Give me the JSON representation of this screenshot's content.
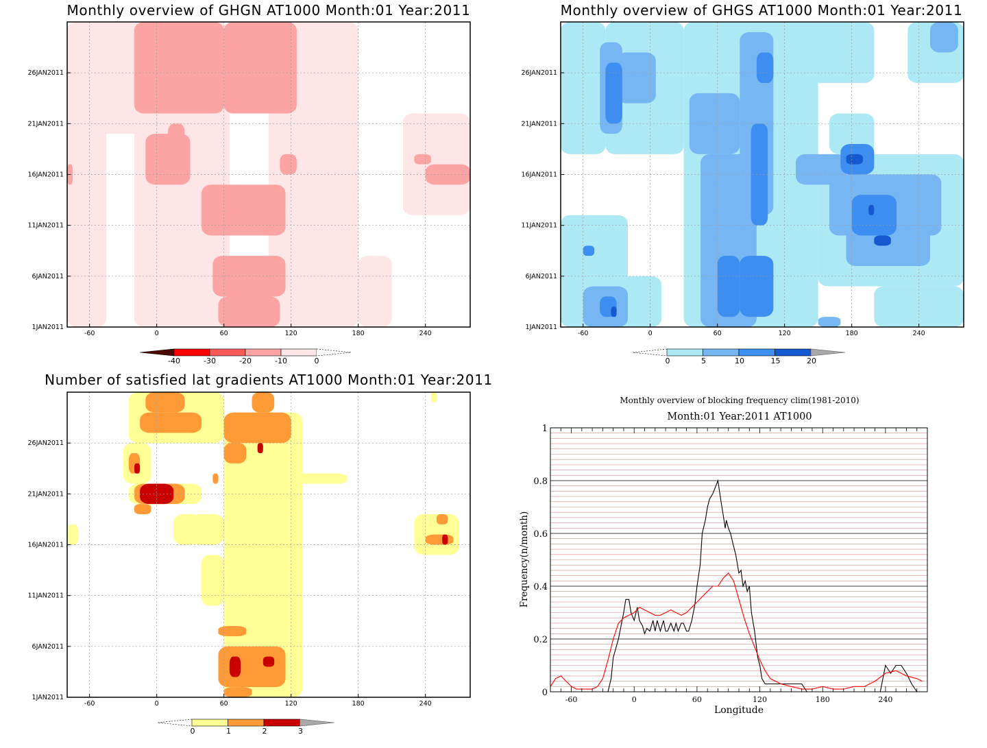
{
  "chart_data": [
    {
      "type": "heatmap",
      "title": "Monthly overview of GHGN AT1000 Month:01 Year:2011",
      "x_ticks": [
        "-60",
        "0",
        "60",
        "120",
        "180",
        "240"
      ],
      "x_tick_values": [
        -60,
        0,
        60,
        120,
        180,
        240
      ],
      "xlim": [
        -80,
        280
      ],
      "y_ticks": [
        "1JAN2011",
        "6JAN2011",
        "11JAN2011",
        "16JAN2011",
        "21JAN2011",
        "26JAN2011"
      ],
      "y_tick_values": [
        1,
        6,
        11,
        16,
        21,
        26
      ],
      "ylim": [
        1,
        31
      ],
      "colorbar": {
        "labels": [
          "-40",
          "-30",
          "-20",
          "-10",
          "0"
        ],
        "colors": [
          "#4a0a00",
          "#ff0000",
          "#f85a5a",
          "#fca3a3",
          "#fee6e6"
        ],
        "over_color": "#ffffff"
      },
      "contours": [
        {
          "level": "0..-10",
          "color": "#fee6e6",
          "cells": [
            [
              -80,
              1,
              -45,
              31
            ],
            [
              -20,
              1,
              65,
              31
            ],
            [
              100,
              1,
              180,
              31
            ],
            [
              180,
              1,
              210,
              8
            ],
            [
              220,
              12,
              280,
              22
            ],
            [
              -80,
              20,
              -10,
              31
            ]
          ]
        },
        {
          "level": "-10..-20",
          "color": "#fca3a3",
          "cells": [
            [
              -20,
              22,
              60,
              31
            ],
            [
              60,
              22,
              125,
              31
            ],
            [
              -10,
              15,
              30,
              20
            ],
            [
              40,
              10,
              115,
              15
            ],
            [
              50,
              4,
              115,
              8
            ],
            [
              55,
              1,
              110,
              4
            ],
            [
              110,
              16,
              125,
              18
            ],
            [
              -80,
              15,
              -75,
              17
            ],
            [
              240,
              15,
              280,
              17
            ],
            [
              230,
              17,
              245,
              18
            ],
            [
              10,
              18,
              25,
              21
            ]
          ]
        }
      ]
    },
    {
      "type": "heatmap",
      "title": "Monthly overview of GHGS AT1000 Month:01 Year:2011",
      "x_ticks": [
        "-60",
        "0",
        "60",
        "120",
        "180",
        "240"
      ],
      "x_tick_values": [
        -60,
        0,
        60,
        120,
        180,
        240
      ],
      "xlim": [
        -80,
        280
      ],
      "y_ticks": [
        "1JAN2011",
        "6JAN2011",
        "11JAN2011",
        "16JAN2011",
        "21JAN2011",
        "26JAN2011"
      ],
      "y_tick_values": [
        1,
        6,
        11,
        16,
        21,
        26
      ],
      "ylim": [
        1,
        31
      ],
      "colorbar": {
        "labels": [
          "0",
          "5",
          "10",
          "15",
          "20"
        ],
        "colors": [
          "#ade9f5",
          "#76b7f3",
          "#3d8ef0",
          "#1559d0"
        ],
        "over_color": "#a9a9a9"
      },
      "contours": [
        {
          "level": "0..5",
          "color": "#ade9f5",
          "cells": [
            [
              -80,
              1,
              -20,
              12
            ],
            [
              -80,
              18,
              -40,
              31
            ],
            [
              -40,
              18,
              30,
              31
            ],
            [
              30,
              1,
              150,
              31
            ],
            [
              150,
              5,
              280,
              18
            ],
            [
              160,
              18,
              200,
              22
            ],
            [
              230,
              25,
              280,
              31
            ],
            [
              200,
              1,
              280,
              5
            ],
            [
              -80,
              1,
              10,
              6
            ],
            [
              140,
              25,
              200,
              31
            ]
          ]
        },
        {
          "level": "5..10",
          "color": "#76b7f3",
          "cells": [
            [
              -45,
              20,
              -25,
              29
            ],
            [
              -30,
              23,
              5,
              28
            ],
            [
              35,
              18,
              80,
              24
            ],
            [
              45,
              1,
              95,
              18
            ],
            [
              80,
              12,
              110,
              30
            ],
            [
              130,
              15,
              175,
              18
            ],
            [
              160,
              10,
              260,
              16
            ],
            [
              175,
              7,
              250,
              12
            ],
            [
              -60,
              1,
              -20,
              5
            ],
            [
              250,
              28,
              275,
              31
            ],
            [
              150,
              1,
              170,
              2
            ]
          ]
        },
        {
          "level": "10..15",
          "color": "#3d8ef0",
          "cells": [
            [
              -40,
              21,
              -25,
              27
            ],
            [
              60,
              2,
              80,
              8
            ],
            [
              80,
              2,
              110,
              8
            ],
            [
              90,
              11,
              105,
              21
            ],
            [
              95,
              25,
              110,
              28
            ],
            [
              170,
              16,
              200,
              19
            ],
            [
              180,
              10,
              220,
              14
            ],
            [
              -45,
              2,
              -30,
              4
            ],
            [
              -60,
              8,
              -50,
              9
            ]
          ]
        },
        {
          "level": "15..20",
          "color": "#1559d0",
          "cells": [
            [
              175,
              17,
              190,
              18
            ],
            [
              195,
              12,
              200,
              13
            ],
            [
              200,
              9,
              215,
              10
            ],
            [
              -35,
              2,
              -30,
              3
            ]
          ]
        }
      ]
    },
    {
      "type": "heatmap",
      "title": "Number of satisfied lat gradients AT1000 Month:01 Year:2011",
      "x_ticks": [
        "-60",
        "0",
        "60",
        "120",
        "180",
        "240"
      ],
      "x_tick_values": [
        -60,
        0,
        60,
        120,
        180,
        240
      ],
      "xlim": [
        -80,
        280
      ],
      "y_ticks": [
        "1JAN2011",
        "6JAN2011",
        "11JAN2011",
        "16JAN2011",
        "21JAN2011",
        "26JAN2011"
      ],
      "y_tick_values": [
        1,
        6,
        11,
        16,
        21,
        26
      ],
      "ylim": [
        1,
        31
      ],
      "colorbar": {
        "labels": [
          "0",
          "1",
          "2",
          "3"
        ],
        "colors": [
          "#ffff96",
          "#ff9b37",
          "#c80000"
        ],
        "over_color": "#a9a9a9"
      },
      "contours": [
        {
          "level": "0..1",
          "color": "#ffff96",
          "cells": [
            [
              -25,
              26,
              60,
              31
            ],
            [
              -30,
              22,
              -5,
              26
            ],
            [
              -25,
              20,
              40,
              22
            ],
            [
              15,
              16,
              40,
              19
            ],
            [
              60,
              1,
              130,
              29
            ],
            [
              40,
              10,
              60,
              15
            ],
            [
              30,
              16,
              60,
              19
            ],
            [
              60,
              22,
              170,
              23
            ],
            [
              230,
              15,
              270,
              19
            ],
            [
              -80,
              16,
              -70,
              18
            ],
            [
              245,
              30,
              250,
              31
            ]
          ]
        },
        {
          "level": "1..2",
          "color": "#ff9b37",
          "cells": [
            [
              -15,
              27,
              40,
              29
            ],
            [
              -10,
              29,
              25,
              31
            ],
            [
              60,
              26,
              120,
              29
            ],
            [
              85,
              29,
              105,
              31
            ],
            [
              -25,
              23,
              -15,
              25
            ],
            [
              -20,
              19,
              -5,
              20
            ],
            [
              -20,
              20,
              25,
              22
            ],
            [
              60,
              24,
              80,
              26
            ],
            [
              50,
              22,
              55,
              23
            ],
            [
              55,
              7,
              80,
              8
            ],
            [
              55,
              2,
              115,
              6
            ],
            [
              60,
              1,
              85,
              2
            ],
            [
              240,
              16,
              265,
              17
            ],
            [
              250,
              18,
              260,
              19
            ]
          ]
        },
        {
          "level": "2..3",
          "color": "#c80000",
          "cells": [
            [
              -20,
              23,
              -15,
              24
            ],
            [
              -15,
              20,
              15,
              22
            ],
            [
              90,
              25,
              95,
              26
            ],
            [
              65,
              3,
              75,
              5
            ],
            [
              95,
              4,
              105,
              5
            ],
            [
              255,
              16,
              260,
              17
            ]
          ]
        }
      ]
    },
    {
      "type": "line",
      "title": "Monthly overview of blocking frequency clim(1981-2010)",
      "subtitle": "Month:01 Year:2011  AT1000",
      "xlabel": "Longitude",
      "ylabel": "Frequency(n/month)",
      "xlim": [
        -80,
        280
      ],
      "ylim": [
        0,
        1
      ],
      "x_ticks": [
        "-60",
        "0",
        "60",
        "120",
        "180",
        "240"
      ],
      "x_tick_values": [
        -60,
        0,
        60,
        120,
        180,
        240
      ],
      "y_ticks": [
        "0",
        "0.2",
        "0.4",
        "0.6",
        "0.8",
        "1"
      ],
      "y_tick_values": [
        0,
        0.2,
        0.4,
        0.6,
        0.8,
        1
      ],
      "grid": true,
      "series": [
        {
          "color": "#000000",
          "x": [
            -80,
            -25,
            -22,
            -20,
            -15,
            -10,
            -8,
            -5,
            -3,
            0,
            3,
            5,
            8,
            10,
            12,
            15,
            18,
            20,
            22,
            25,
            28,
            30,
            32,
            35,
            38,
            40,
            42,
            45,
            47,
            50,
            52,
            55,
            58,
            60,
            63,
            65,
            68,
            70,
            72,
            75,
            78,
            80,
            83,
            85,
            87,
            88,
            90,
            92,
            95,
            97,
            100,
            102,
            104,
            106,
            108,
            110,
            112,
            115,
            118,
            120,
            122,
            125,
            128,
            130,
            140,
            160,
            165,
            170,
            235,
            240,
            245,
            250,
            255,
            260,
            265,
            270,
            275
          ],
          "y": [
            0,
            0,
            0.05,
            0.13,
            0.2,
            0.3,
            0.35,
            0.35,
            0.3,
            0.27,
            0.32,
            0.27,
            0.25,
            0.22,
            0.24,
            0.23,
            0.27,
            0.23,
            0.27,
            0.23,
            0.27,
            0.23,
            0.23,
            0.26,
            0.23,
            0.26,
            0.23,
            0.26,
            0.26,
            0.23,
            0.23,
            0.27,
            0.33,
            0.4,
            0.48,
            0.6,
            0.65,
            0.7,
            0.73,
            0.75,
            0.78,
            0.8,
            0.72,
            0.67,
            0.62,
            0.65,
            0.62,
            0.6,
            0.55,
            0.52,
            0.45,
            0.46,
            0.4,
            0.42,
            0.38,
            0.4,
            0.3,
            0.23,
            0.13,
            0.1,
            0.05,
            0.03,
            0.03,
            0.03,
            0.03,
            0.03,
            0,
            0,
            0,
            0.1,
            0.07,
            0.1,
            0.1,
            0.07,
            0.03,
            0,
            0
          ]
        },
        {
          "color": "#ff0000",
          "x": [
            -80,
            -75,
            -70,
            -65,
            -60,
            -55,
            -50,
            -45,
            -40,
            -35,
            -30,
            -25,
            -20,
            -15,
            -10,
            -5,
            0,
            5,
            10,
            15,
            20,
            25,
            30,
            35,
            40,
            45,
            50,
            55,
            60,
            65,
            70,
            75,
            80,
            85,
            90,
            95,
            100,
            105,
            110,
            115,
            120,
            125,
            130,
            140,
            150,
            160,
            170,
            180,
            190,
            200,
            210,
            220,
            230,
            240,
            250,
            260,
            270,
            275
          ],
          "y": [
            0.02,
            0.05,
            0.06,
            0.04,
            0.02,
            0.01,
            0.01,
            0.01,
            0.01,
            0.02,
            0.05,
            0.12,
            0.2,
            0.26,
            0.28,
            0.29,
            0.3,
            0.32,
            0.31,
            0.3,
            0.29,
            0.29,
            0.3,
            0.31,
            0.3,
            0.29,
            0.3,
            0.32,
            0.34,
            0.36,
            0.38,
            0.4,
            0.4,
            0.43,
            0.45,
            0.42,
            0.35,
            0.28,
            0.22,
            0.17,
            0.12,
            0.08,
            0.05,
            0.03,
            0.02,
            0.01,
            0.01,
            0.02,
            0.01,
            0.01,
            0.02,
            0.02,
            0.04,
            0.07,
            0.08,
            0.06,
            0.05,
            0.04
          ]
        }
      ]
    }
  ]
}
